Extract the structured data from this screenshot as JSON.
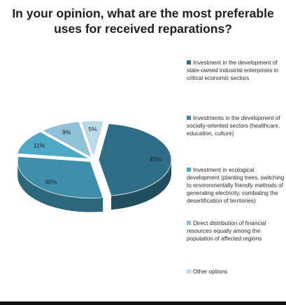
{
  "chart_data": {
    "type": "pie",
    "title": "In your opinion, what are the most preferable uses for received reparations?",
    "categories": [
      "Investment in the development of state-owned industrial enterprises in critical economic sectors",
      "Investments in the development of socially-oriented sectors (healthcare, education, culture)",
      "Investment in ecological development (planting trees, switching to environmentally friendly methods of generating electricity, combating the desertification of territories)",
      "Direct distribution of financial resources equally among the population of affected regions",
      "Other options"
    ],
    "values": [
      45,
      30,
      11,
      9,
      5
    ],
    "value_labels": [
      "45%",
      "30%",
      "11%",
      "9%",
      "5%"
    ],
    "colors": [
      "#2f6e86",
      "#3f8fac",
      "#4ea9c7",
      "#8fc1d6",
      "#b9dbe8"
    ],
    "legend_position": "right",
    "style": "3d-exploded"
  }
}
